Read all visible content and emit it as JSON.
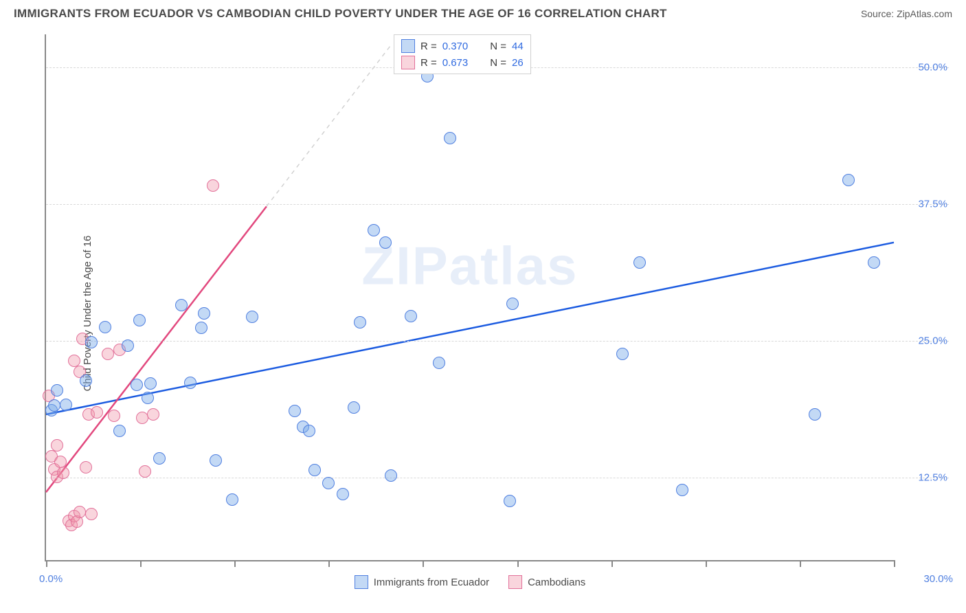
{
  "header": {
    "title": "IMMIGRANTS FROM ECUADOR VS CAMBODIAN CHILD POVERTY UNDER THE AGE OF 16 CORRELATION CHART",
    "source_prefix": "Source: ",
    "source_name": "ZipAtlas.com"
  },
  "watermark": "ZIPatlas",
  "chart": {
    "type": "scatter",
    "ylabel": "Child Poverty Under the Age of 16",
    "xlim": [
      0,
      30
    ],
    "ylim": [
      5,
      53
    ],
    "xtick_positions": [
      0,
      3.33,
      6.67,
      10,
      13.33,
      16.67,
      20,
      23.33,
      26.67,
      30
    ],
    "xtick_labels": {
      "0": "0.0%",
      "30": "30.0%"
    },
    "ytick_positions": [
      12.5,
      25.0,
      37.5,
      50.0
    ],
    "ytick_labels": [
      "12.5%",
      "25.0%",
      "37.5%",
      "50.0%"
    ],
    "grid_color": "#d8d8d8",
    "axis_color": "#888888",
    "background_color": "#ffffff",
    "series": {
      "ecuador": {
        "label": "Immigrants from Ecuador",
        "marker_fill": "rgba(122, 170, 232, 0.45)",
        "marker_stroke": "#4f7fe0",
        "marker_radius_px": 9,
        "R": "0.370",
        "N": "44",
        "trend": {
          "x1": 0,
          "y1": 18.3,
          "x2": 30,
          "y2": 34.0,
          "color": "#1a5ae0",
          "width": 2.5,
          "dash_after_x": null
        },
        "points": [
          [
            0.2,
            18.7
          ],
          [
            0.3,
            19.1
          ],
          [
            0.4,
            20.5
          ],
          [
            0.7,
            19.2
          ],
          [
            1.4,
            21.4
          ],
          [
            1.6,
            24.9
          ],
          [
            2.1,
            26.3
          ],
          [
            2.6,
            16.8
          ],
          [
            2.9,
            24.6
          ],
          [
            3.2,
            21.0
          ],
          [
            3.3,
            26.9
          ],
          [
            3.6,
            19.8
          ],
          [
            3.7,
            21.1
          ],
          [
            4.0,
            14.3
          ],
          [
            4.8,
            28.3
          ],
          [
            5.1,
            21.2
          ],
          [
            5.5,
            26.2
          ],
          [
            5.6,
            27.5
          ],
          [
            6.0,
            14.1
          ],
          [
            6.6,
            10.5
          ],
          [
            7.3,
            27.2
          ],
          [
            8.8,
            18.6
          ],
          [
            9.1,
            17.2
          ],
          [
            9.3,
            16.8
          ],
          [
            9.5,
            13.2
          ],
          [
            10.0,
            12.0
          ],
          [
            10.5,
            11.0
          ],
          [
            10.9,
            18.9
          ],
          [
            11.1,
            26.7
          ],
          [
            11.6,
            35.1
          ],
          [
            12.0,
            34.0
          ],
          [
            12.2,
            12.7
          ],
          [
            12.9,
            27.3
          ],
          [
            13.5,
            49.2
          ],
          [
            13.9,
            23.0
          ],
          [
            14.3,
            43.5
          ],
          [
            16.4,
            10.4
          ],
          [
            16.5,
            28.4
          ],
          [
            20.4,
            23.8
          ],
          [
            21.0,
            32.2
          ],
          [
            22.5,
            11.4
          ],
          [
            27.2,
            18.3
          ],
          [
            28.4,
            39.7
          ],
          [
            29.3,
            32.2
          ]
        ]
      },
      "cambodian": {
        "label": "Cambodians",
        "marker_fill": "rgba(240, 150, 170, 0.40)",
        "marker_stroke": "#e27099",
        "marker_radius_px": 9,
        "R": "0.673",
        "N": "26",
        "trend": {
          "x1": 0,
          "y1": 11.2,
          "x2": 12.2,
          "y2": 52.0,
          "color": "#e2487e",
          "width": 2.5,
          "dash_after_x": 7.8
        },
        "points": [
          [
            0.1,
            20.0
          ],
          [
            0.2,
            14.5
          ],
          [
            0.3,
            13.3
          ],
          [
            0.4,
            15.5
          ],
          [
            0.4,
            12.6
          ],
          [
            0.5,
            14.0
          ],
          [
            0.6,
            13.0
          ],
          [
            0.8,
            8.6
          ],
          [
            0.9,
            8.2
          ],
          [
            1.0,
            23.2
          ],
          [
            1.0,
            9.0
          ],
          [
            1.1,
            8.5
          ],
          [
            1.2,
            9.4
          ],
          [
            1.2,
            22.2
          ],
          [
            1.3,
            25.2
          ],
          [
            1.4,
            13.5
          ],
          [
            1.5,
            18.3
          ],
          [
            1.6,
            9.2
          ],
          [
            1.8,
            18.5
          ],
          [
            2.2,
            23.8
          ],
          [
            2.4,
            18.2
          ],
          [
            2.6,
            24.2
          ],
          [
            3.4,
            18.0
          ],
          [
            3.5,
            13.1
          ],
          [
            3.8,
            18.3
          ],
          [
            5.9,
            39.2
          ]
        ]
      }
    },
    "legend_top": {
      "r_label": "R =",
      "n_label": "N ="
    },
    "legend_bottom_order": [
      "ecuador",
      "cambodian"
    ]
  }
}
